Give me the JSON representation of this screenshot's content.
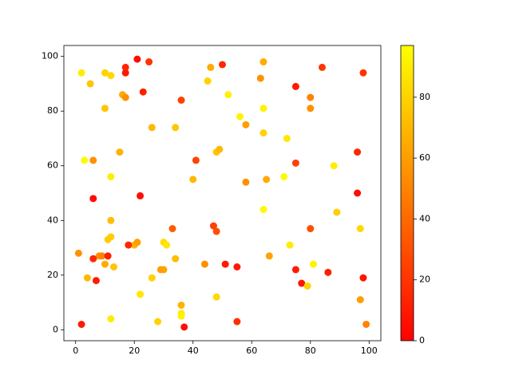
{
  "chart_data": {
    "type": "scatter",
    "colormap": "autumn",
    "x": [
      2,
      5,
      10,
      12,
      17,
      17,
      21,
      25,
      16,
      17,
      23,
      10,
      36,
      26,
      34,
      45,
      46,
      50,
      52,
      56,
      58,
      63,
      64,
      64,
      64,
      75,
      80,
      80,
      84,
      98,
      72,
      75,
      96,
      88,
      3,
      6,
      15,
      12,
      41,
      48,
      49,
      40,
      58,
      65,
      71,
      6,
      22,
      64,
      96,
      89,
      12,
      47,
      48,
      33,
      80,
      97,
      11,
      12,
      20,
      21,
      18,
      30,
      31,
      73,
      1,
      8,
      9,
      11,
      6,
      13,
      10,
      34,
      44,
      51,
      55,
      66,
      75,
      81,
      4,
      7,
      26,
      29,
      30,
      22,
      48,
      77,
      79,
      86,
      98,
      97,
      12,
      28,
      36,
      36,
      36,
      37,
      55,
      99,
      2
    ],
    "y": [
      94,
      90,
      94,
      93,
      96,
      94,
      99,
      98,
      86,
      85,
      87,
      81,
      84,
      74,
      74,
      91,
      96,
      97,
      86,
      78,
      75,
      92,
      98,
      81,
      72,
      89,
      85,
      81,
      96,
      94,
      70,
      61,
      65,
      60,
      62,
      62,
      65,
      56,
      62,
      65,
      66,
      55,
      54,
      55,
      56,
      48,
      49,
      44,
      50,
      43,
      40,
      38,
      36,
      37,
      37,
      37,
      33,
      34,
      31,
      32,
      31,
      32,
      31,
      31,
      28,
      27,
      27,
      27,
      26,
      23,
      24,
      26,
      24,
      24,
      23,
      27,
      22,
      24,
      19,
      18,
      19,
      22,
      22,
      13,
      12,
      17,
      16,
      21,
      19,
      11,
      4,
      3,
      9,
      6,
      5,
      1,
      3,
      2,
      2
    ],
    "c": [
      90,
      75,
      80,
      82,
      15,
      10,
      5,
      20,
      65,
      55,
      12,
      75,
      25,
      70,
      75,
      80,
      65,
      15,
      92,
      93,
      60,
      55,
      65,
      92,
      80,
      10,
      50,
      55,
      20,
      20,
      88,
      25,
      15,
      90,
      95,
      55,
      68,
      90,
      25,
      75,
      70,
      70,
      55,
      65,
      95,
      5,
      5,
      95,
      5,
      78,
      72,
      25,
      30,
      35,
      30,
      82,
      78,
      78,
      68,
      60,
      15,
      85,
      88,
      90,
      55,
      55,
      50,
      12,
      15,
      75,
      65,
      72,
      55,
      10,
      10,
      62,
      10,
      92,
      70,
      10,
      80,
      60,
      62,
      88,
      82,
      8,
      80,
      12,
      8,
      60,
      90,
      80,
      68,
      90,
      92,
      5,
      18,
      50,
      10
    ],
    "xlim": [
      -4,
      104
    ],
    "ylim": [
      -4,
      104
    ],
    "xticks": [
      0,
      20,
      40,
      60,
      80,
      100
    ],
    "yticks": [
      0,
      20,
      40,
      60,
      80,
      100
    ],
    "clim": [
      0,
      97
    ],
    "colorbar_ticks": [
      0,
      20,
      40,
      60,
      80
    ]
  }
}
